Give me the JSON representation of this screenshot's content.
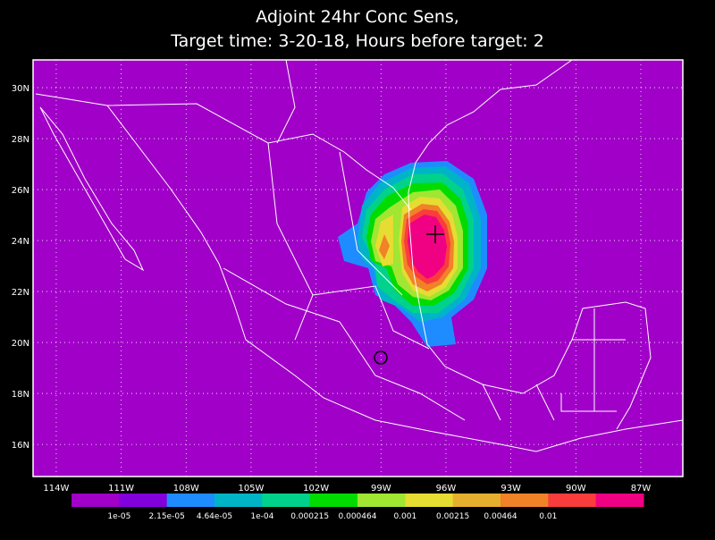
{
  "title": [
    "Adjoint 24hr Conc Sens,",
    "Target time: 3-20-18, Hours before target: 2"
  ],
  "map": {
    "xlim": [
      -115.07,
      -85.06
    ],
    "ylim": [
      14.74,
      31.09
    ],
    "lon_ticks": [
      {
        "value": -114,
        "label": "114W"
      },
      {
        "value": -111,
        "label": "111W"
      },
      {
        "value": -108,
        "label": "108W"
      },
      {
        "value": -105,
        "label": "105W"
      },
      {
        "value": -102,
        "label": "102W"
      },
      {
        "value": -99,
        "label": "99W"
      },
      {
        "value": -96,
        "label": "96W"
      },
      {
        "value": -93,
        "label": "93W"
      },
      {
        "value": -90,
        "label": "90W"
      },
      {
        "value": -87,
        "label": "87W"
      }
    ],
    "lat_ticks": [
      {
        "value": 16,
        "label": "16N"
      },
      {
        "value": 18,
        "label": "18N"
      },
      {
        "value": 20,
        "label": "20N"
      },
      {
        "value": 22,
        "label": "22N"
      },
      {
        "value": 24,
        "label": "24N"
      },
      {
        "value": 26,
        "label": "26N"
      },
      {
        "value": 28,
        "label": "28N"
      },
      {
        "value": 30,
        "label": "30N"
      }
    ],
    "colorbar": {
      "colors": [
        "#a000c8",
        "#8200dc",
        "#1e8cff",
        "#00b4c8",
        "#00d28c",
        "#00dc00",
        "#a0e632",
        "#e6dc32",
        "#e6af2d",
        "#f08228",
        "#fa3c3c",
        "#f00082"
      ],
      "labels": [
        "1e-05",
        "2.15e-05",
        "4.64e-05",
        "1e-04",
        "0.000215",
        "0.000464",
        "0.001",
        "0.00215",
        "0.00464",
        "0.01"
      ]
    }
  }
}
